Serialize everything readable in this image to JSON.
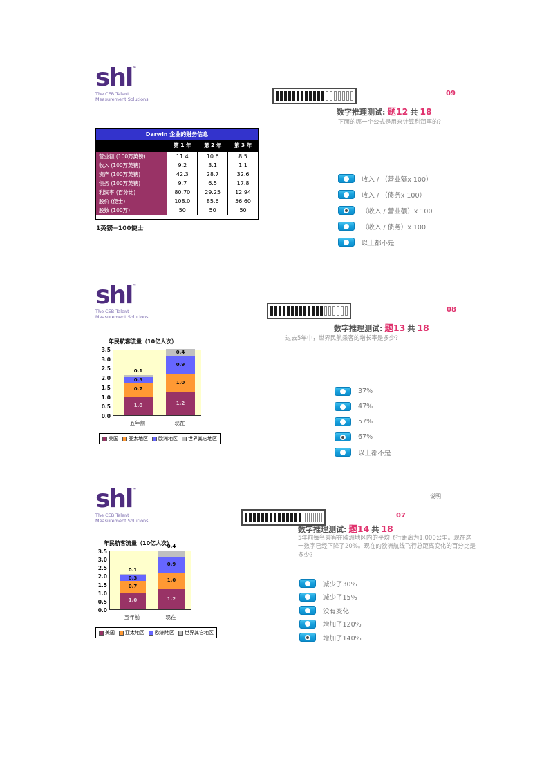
{
  "colors": {
    "accent_pink": "#E0336E",
    "logo_purple": "#4F2D7F",
    "logo_tagline_purple": "#7A6AAE",
    "table_header_blue": "#3333CC",
    "table_label_maroon": "#993366",
    "radio_blue": "#18A0DC",
    "chart_plot_bg": "#FFFFCC"
  },
  "logo": {
    "brand": "shl",
    "trademark": "™",
    "tagline_line1": "The CEB Talent",
    "tagline_line2": "Measurement Solutions"
  },
  "sections": [
    {
      "page_num": "09",
      "progress": {
        "filled": 12,
        "total": 19
      },
      "test_title": "数字推理测试:",
      "question_label": "题12",
      "of_label": "共",
      "total_questions": "18",
      "question": "下面的哪一个公式是用来计算利润率的?",
      "options": [
        {
          "label": "收入 / （营业额x 100）",
          "selected": false
        },
        {
          "label": "收入 / （债务x 100）",
          "selected": false
        },
        {
          "label": "（收入 / 营业额）x 100",
          "selected": true
        },
        {
          "label": "（收入 / 债务）x 100",
          "selected": false
        },
        {
          "label": "以上都不是",
          "selected": false
        }
      ],
      "table": {
        "title": "Darwin 企业的财务信息",
        "col_headers": [
          "第 1 年",
          "第 2 年",
          "第 3 年"
        ],
        "rows": [
          {
            "label": "营业额 (100万英镑)",
            "values": [
              "11.4",
              "10.6",
              "8.5"
            ]
          },
          {
            "label": "收入 (100万英镑)",
            "values": [
              "9.2",
              "3.1",
              "1.1"
            ]
          },
          {
            "label": "资产 (100万英镑)",
            "values": [
              "42.3",
              "28.7",
              "32.6"
            ]
          },
          {
            "label": "债务 (100万英镑)",
            "values": [
              "9.7",
              "6.5",
              "17.8"
            ]
          },
          {
            "label": "利润率 (百分比)",
            "values": [
              "80.70",
              "29.25",
              "12.94"
            ]
          },
          {
            "label": "股价 (便士)",
            "values": [
              "108.0",
              "85.6",
              "56.60"
            ]
          },
          {
            "label": "股数 (100万)",
            "values": [
              "50",
              "50",
              "50"
            ]
          }
        ]
      },
      "note": "1英镑=100便士"
    },
    {
      "page_num": "08",
      "progress": {
        "filled": 13,
        "total": 19
      },
      "test_title": "数字推理测试:",
      "question_label": "题13",
      "of_label": "共",
      "total_questions": "18",
      "question": "过去5年中，世界民航乘客的增长率是多少?",
      "options": [
        {
          "label": "37%",
          "selected": false
        },
        {
          "label": "47%",
          "selected": false
        },
        {
          "label": "57%",
          "selected": false
        },
        {
          "label": "67%",
          "selected": true
        },
        {
          "label": "以上都不是",
          "selected": false
        }
      ]
    },
    {
      "page_num": "07",
      "instructions_link": "说明",
      "progress": {
        "filled": 14,
        "total": 19
      },
      "test_title": "数字推理测试:",
      "question_label": "题14",
      "of_label": "共",
      "total_questions": "18",
      "question": "5年前每名乘客在欧洲地区内的平均飞行距离为1,000公里。现在这一数字已经下降了20%。现在的欧洲航线飞行总距离变化的百分比是多少?",
      "options": [
        {
          "label": "减少了30%",
          "selected": false
        },
        {
          "label": "减少了15%",
          "selected": false
        },
        {
          "label": "没有变化",
          "selected": false
        },
        {
          "label": "增加了120%",
          "selected": false
        },
        {
          "label": "增加了140%",
          "selected": true
        }
      ]
    }
  ],
  "chart_data": {
    "type": "bar",
    "stacked": true,
    "title": "年民航客流量（10亿人次）",
    "categories": [
      "五年前",
      "现在"
    ],
    "series": [
      {
        "name": "美国",
        "color": "#993366",
        "values": [
          1.0,
          1.2
        ]
      },
      {
        "name": "亚太地区",
        "color": "#FF9933",
        "values": [
          0.7,
          1.0
        ]
      },
      {
        "name": "欧洲地区",
        "color": "#6666FF",
        "values": [
          0.3,
          0.9
        ]
      },
      {
        "name": "世界其它地区",
        "color": "#C0C0C0",
        "values": [
          0.1,
          0.4
        ]
      }
    ],
    "totals": [
      2.1,
      3.5
    ],
    "ylim": [
      0,
      3.5
    ],
    "yticks": [
      "0.0",
      "0.5",
      "1.0",
      "1.5",
      "2.0",
      "2.5",
      "3.0",
      "3.5"
    ],
    "grid": false,
    "legend_position": "bottom",
    "plot_bg": "#FFFFCC"
  }
}
